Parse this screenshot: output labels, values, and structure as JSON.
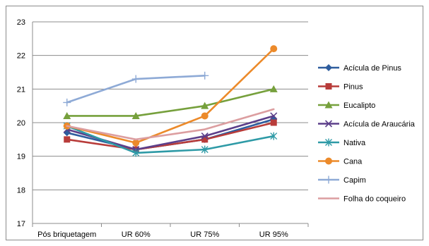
{
  "chart_data": {
    "type": "line",
    "categories": [
      "Pós briquetagem",
      "UR 60%",
      "UR 75%",
      "UR 95%"
    ],
    "ylim": [
      17,
      23
    ],
    "yticks": [
      17,
      18,
      19,
      20,
      21,
      22,
      23
    ],
    "grid": true,
    "legend_position": "right",
    "series": [
      {
        "name": "Acícula de Pinus",
        "color": "#2e5d9e",
        "marker": "diamond",
        "values": [
          19.7,
          19.2,
          19.5,
          20.1
        ]
      },
      {
        "name": "Pinus",
        "color": "#b83c3a",
        "marker": "square",
        "values": [
          19.5,
          19.2,
          19.5,
          20.0
        ]
      },
      {
        "name": "Eucalipto",
        "color": "#76a03c",
        "marker": "triangle",
        "values": [
          20.2,
          20.2,
          20.5,
          21.0
        ]
      },
      {
        "name": "Acícula de Araucária",
        "color": "#5c3f8a",
        "marker": "x",
        "values": [
          19.8,
          19.2,
          19.6,
          20.2
        ]
      },
      {
        "name": "Nativa",
        "color": "#2e9aa6",
        "marker": "asterisk",
        "values": [
          19.9,
          19.1,
          19.2,
          19.6
        ]
      },
      {
        "name": "Cana",
        "color": "#ec8a2a",
        "marker": "circle",
        "values": [
          19.9,
          19.4,
          20.2,
          22.2
        ]
      },
      {
        "name": "Capim",
        "color": "#8eaad6",
        "marker": "plus",
        "values": [
          20.6,
          21.3,
          21.4,
          null
        ]
      },
      {
        "name": "Folha do coqueiro",
        "color": "#dc9ea0",
        "marker": "none",
        "values": [
          19.9,
          19.5,
          19.8,
          20.4
        ]
      }
    ]
  }
}
